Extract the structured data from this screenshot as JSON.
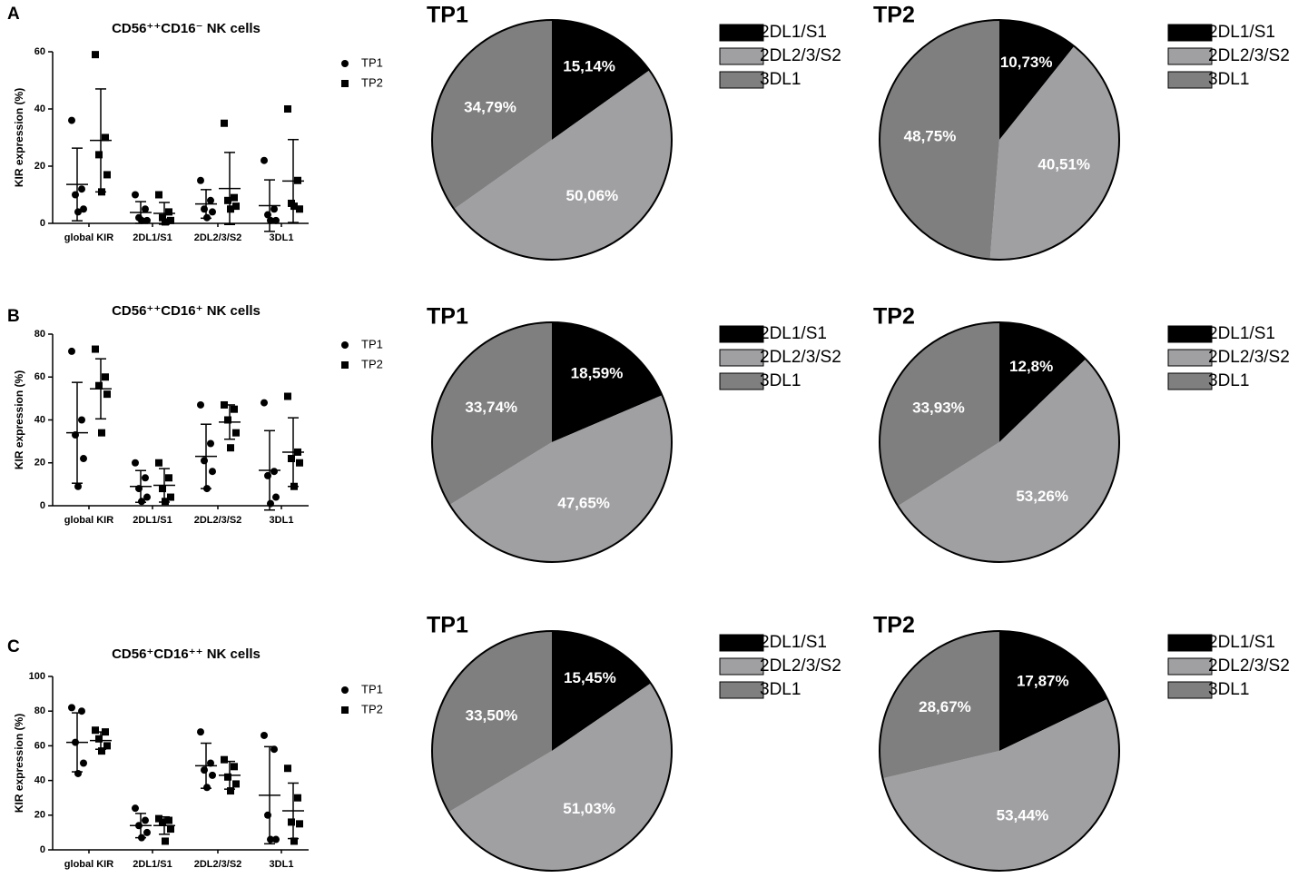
{
  "chart_data": [
    {
      "type": "scatter",
      "panel": "A",
      "title": "CD56⁺⁺CD16⁻ NK cells",
      "ylabel": "KIR expression (%)",
      "categories": [
        "global  KIR",
        "2DL1/S1",
        "2DL2/3/S2",
        "3DL1"
      ],
      "ylim": [
        0,
        60
      ],
      "yticks": [
        0,
        20,
        40,
        60
      ],
      "color": "#000000",
      "series": [
        {
          "name": "TP1",
          "marker": "circle",
          "values": [
            [
              36,
              12,
              10,
              5,
              4
            ],
            [
              10,
              5,
              2,
              1,
              1
            ],
            [
              15,
              8,
              5,
              4,
              2
            ],
            [
              22,
              5,
              3,
              1,
              1
            ]
          ],
          "mean": [
            13.6,
            3.8,
            6.8,
            6.2
          ],
          "sd": [
            12.7,
            3.8,
            5,
            9
          ]
        },
        {
          "name": "TP2",
          "marker": "square",
          "values": [
            [
              59,
              30,
              24,
              17,
              11
            ],
            [
              10,
              4,
              2,
              1,
              0.5
            ],
            [
              35,
              9,
              8,
              6,
              5
            ],
            [
              40,
              15,
              7,
              5,
              6
            ]
          ],
          "mean": [
            29,
            3.5,
            12.2,
            14.8
          ],
          "sd": [
            18,
            3.8,
            12.6,
            14.5
          ]
        }
      ]
    },
    {
      "type": "pie",
      "title": "TP1",
      "categories": [
        "2DL1/S1",
        "2DL2/3/S2",
        "3DL1"
      ],
      "values": [
        15.14,
        50.06,
        34.79
      ],
      "value_labels": [
        "15,14%",
        "50,06%",
        "34,79%"
      ],
      "colors": [
        "#000000",
        "#a0a0a3",
        "#7f7f7f"
      ]
    },
    {
      "type": "pie",
      "title": "TP2",
      "categories": [
        "2DL1/S1",
        "2DL2/3/S2",
        "3DL1"
      ],
      "values": [
        10.73,
        40.51,
        48.75
      ],
      "value_labels": [
        "10,73%",
        "40,51%",
        "48,75%"
      ],
      "colors": [
        "#000000",
        "#a0a0a3",
        "#7f7f7f"
      ]
    },
    {
      "type": "scatter",
      "panel": "B",
      "title": "CD56⁺⁺CD16⁺ NK cells",
      "ylabel": "KIR expression (%)",
      "categories": [
        "global  KIR",
        "2DL1/S1",
        "2DL2/3/S2",
        "3DL1"
      ],
      "ylim": [
        0,
        80
      ],
      "yticks": [
        0,
        20,
        40,
        60,
        80
      ],
      "color": "#000000",
      "series": [
        {
          "name": "TP1",
          "marker": "circle",
          "values": [
            [
              72,
              40,
              33,
              22,
              9
            ],
            [
              20,
              13,
              8,
              4,
              2
            ],
            [
              47,
              29,
              21,
              16,
              8
            ],
            [
              48,
              16,
              14,
              4,
              1
            ]
          ],
          "mean": [
            34,
            9,
            23,
            16.5
          ],
          "sd": [
            23.5,
            7.4,
            15,
            18.5
          ]
        },
        {
          "name": "TP2",
          "marker": "square",
          "values": [
            [
              73,
              60,
              56,
              52,
              34
            ],
            [
              20,
              13,
              8,
              4,
              2
            ],
            [
              47,
              45,
              40,
              34,
              27
            ],
            [
              51,
              25,
              22,
              20,
              9
            ]
          ],
          "mean": [
            54.5,
            9.5,
            39,
            25
          ],
          "sd": [
            14,
            7.8,
            8,
            16
          ]
        }
      ]
    },
    {
      "type": "pie",
      "title": "TP1",
      "categories": [
        "2DL1/S1",
        "2DL2/3/S2",
        "3DL1"
      ],
      "values": [
        18.59,
        47.65,
        33.74
      ],
      "value_labels": [
        "18,59%",
        "47,65%",
        "33,74%"
      ],
      "colors": [
        "#000000",
        "#a0a0a3",
        "#7f7f7f"
      ]
    },
    {
      "type": "pie",
      "title": "TP2",
      "categories": [
        "2DL1/S1",
        "2DL2/3/S2",
        "3DL1"
      ],
      "values": [
        12.8,
        53.26,
        33.93
      ],
      "value_labels": [
        "12,8%",
        "53,26%",
        "33,93%"
      ],
      "colors": [
        "#000000",
        "#a0a0a3",
        "#7f7f7f"
      ]
    },
    {
      "type": "scatter",
      "panel": "C",
      "title": "CD56⁺CD16⁺⁺ NK cells",
      "ylabel": "KIR expression (%)",
      "categories": [
        "global  KIR",
        "2DL1/S1",
        "2DL2/3/S2",
        "3DL1"
      ],
      "ylim": [
        0,
        100
      ],
      "yticks": [
        0,
        20,
        40,
        60,
        80,
        100
      ],
      "color": "#000000",
      "series": [
        {
          "name": "TP1",
          "marker": "circle",
          "values": [
            [
              82,
              80,
              62,
              50,
              44
            ],
            [
              24,
              17,
              14,
              10,
              7
            ],
            [
              68,
              50,
              46,
              43,
              36
            ],
            [
              66,
              58,
              20,
              6,
              6
            ]
          ],
          "mean": [
            62,
            14,
            48.5,
            31.5
          ],
          "sd": [
            17,
            7,
            13,
            28
          ]
        },
        {
          "name": "TP2",
          "marker": "square",
          "values": [
            [
              69,
              68,
              64,
              60,
              57
            ],
            [
              18,
              17,
              16,
              12,
              5
            ],
            [
              52,
              48,
              42,
              38,
              34
            ],
            [
              47,
              30,
              16,
              15,
              5
            ]
          ],
          "mean": [
            63,
            14,
            43,
            22.5
          ],
          "sd": [
            5,
            5,
            8,
            16
          ]
        }
      ]
    },
    {
      "type": "pie",
      "title": "TP1",
      "categories": [
        "2DL1/S1",
        "2DL2/3/S2",
        "3DL1"
      ],
      "values": [
        15.45,
        51.03,
        33.5
      ],
      "value_labels": [
        "15,45%",
        "51,03%",
        "33,50%"
      ],
      "colors": [
        "#000000",
        "#a0a0a3",
        "#7f7f7f"
      ]
    },
    {
      "type": "pie",
      "title": "TP2",
      "categories": [
        "2DL1/S1",
        "2DL2/3/S2",
        "3DL1"
      ],
      "values": [
        17.87,
        53.44,
        28.67
      ],
      "value_labels": [
        "17,87%",
        "53,44%",
        "28,67%"
      ],
      "colors": [
        "#000000",
        "#a0a0a3",
        "#7f7f7f"
      ]
    }
  ]
}
